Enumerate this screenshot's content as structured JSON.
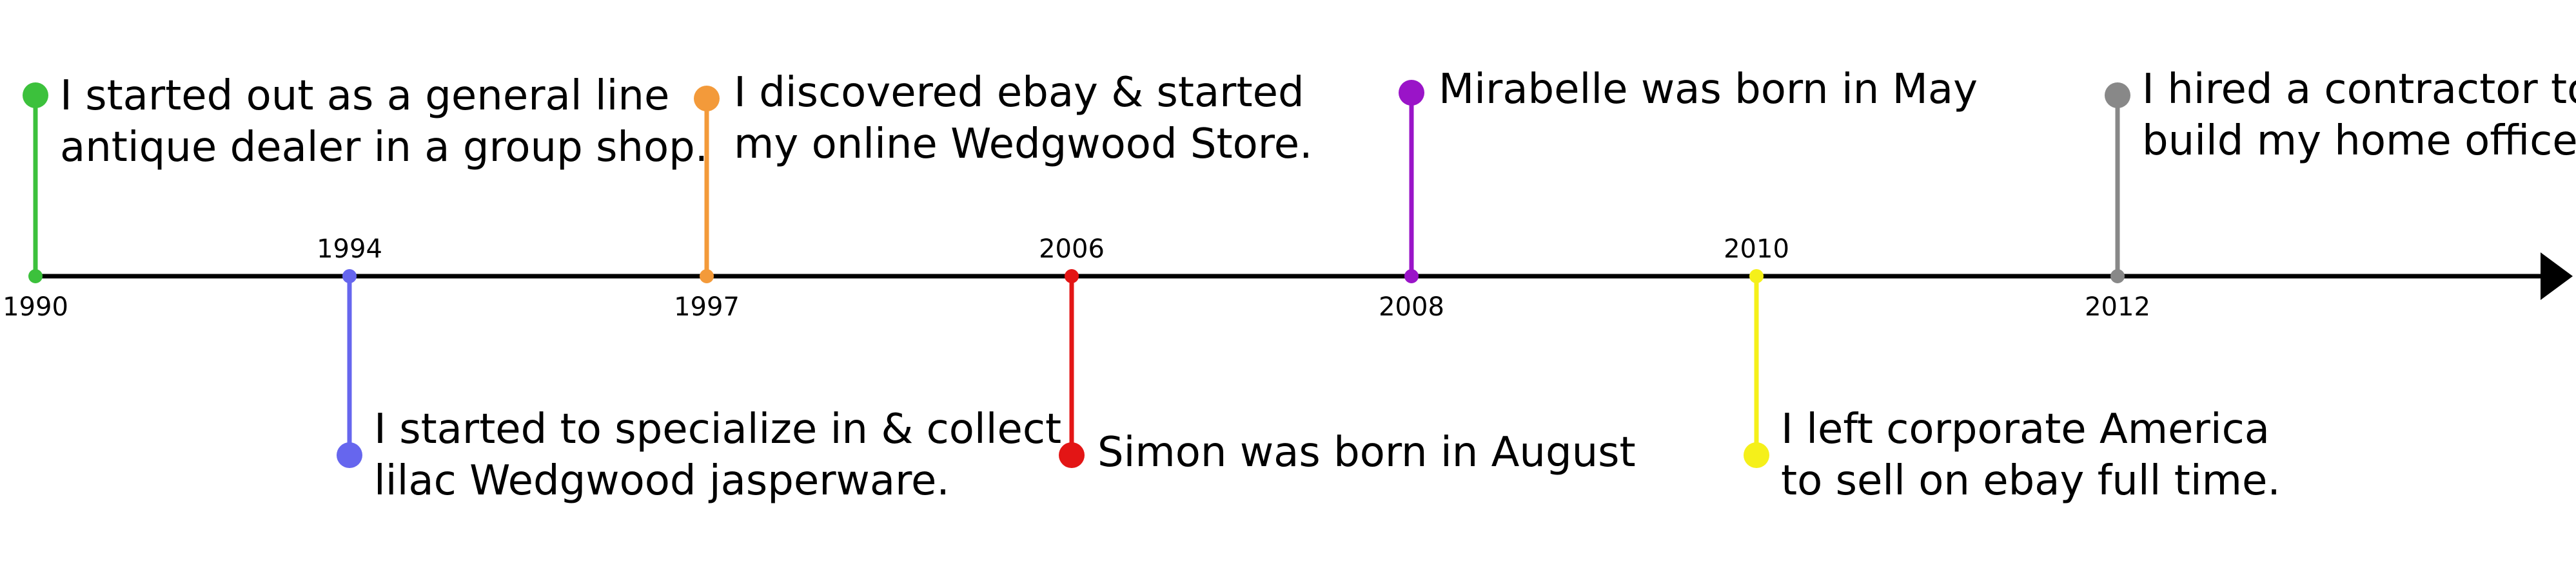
{
  "events": [
    {
      "year": "1990",
      "color": "#3cc13c",
      "text_color": "#000000",
      "side": "above",
      "lines": [
        "I started out as a general line",
        "antique dealer in a group shop."
      ]
    },
    {
      "year": "1994",
      "color": "#6666ee",
      "text_color": "#000000",
      "side": "below",
      "lines": [
        "I started to specialize in & collect",
        "lilac Wedgwood jasperware."
      ]
    },
    {
      "year": "1997",
      "color": "#f39a3a",
      "text_color": "#3a3a10",
      "side": "above",
      "lines": [
        "I discovered ebay & started",
        "my online Wedgwood Store."
      ]
    },
    {
      "year": "2006",
      "color": "#e31515",
      "text_color": "#000000",
      "side": "below",
      "lines": [
        "Simon was born in August"
      ]
    },
    {
      "year": "2008",
      "color": "#9a14c8",
      "text_color": "#000000",
      "side": "above",
      "lines": [
        "Mirabelle was born in May"
      ]
    },
    {
      "year": "2010",
      "color": "#f5f01a",
      "text_color": "#000000",
      "side": "below",
      "lines": [
        "I left corporate America",
        "to sell on ebay full time."
      ]
    },
    {
      "year": "2012",
      "color": "#888888",
      "text_color": "#000000",
      "side": "above",
      "lines": [
        "I hired a contractor to",
        "build my home office"
      ]
    }
  ]
}
